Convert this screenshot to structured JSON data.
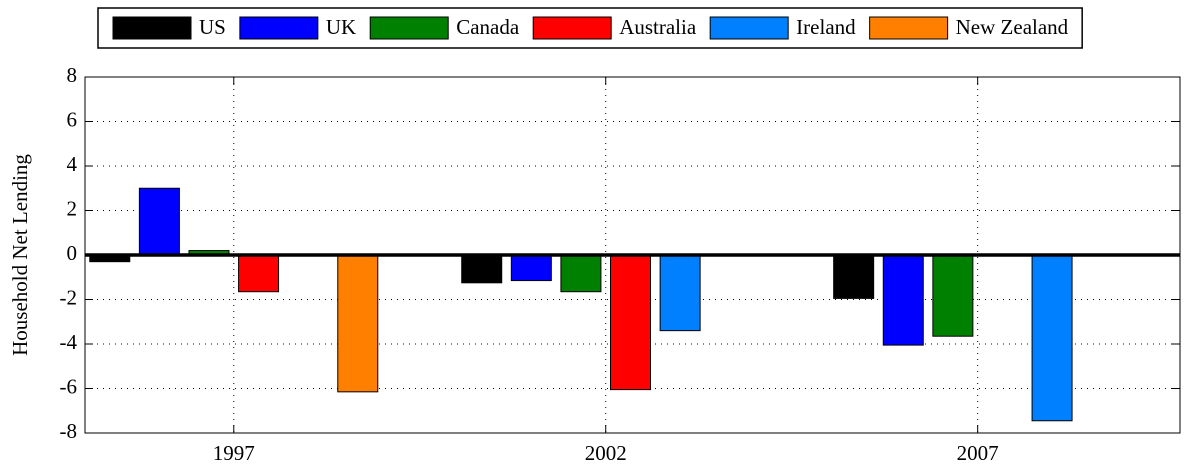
{
  "chart_data": {
    "type": "bar",
    "y_label": "Household Net Lending",
    "x": [
      1997,
      2002,
      2007
    ],
    "series": [
      {
        "name": "US",
        "color": "#000000",
        "values": [
          -0.3,
          -1.25,
          -1.95
        ]
      },
      {
        "name": "UK",
        "color": "#0000ff",
        "values": [
          3.0,
          -1.15,
          -4.05
        ]
      },
      {
        "name": "Canada",
        "color": "#008000",
        "values": [
          0.2,
          -1.65,
          -3.65
        ]
      },
      {
        "name": "Australia",
        "color": "#ff0000",
        "values": [
          -1.65,
          -6.05,
          null
        ]
      },
      {
        "name": "Ireland",
        "color": "#0080ff",
        "values": [
          null,
          -3.4,
          -7.45
        ]
      },
      {
        "name": "New Zealand",
        "color": "#ff8000",
        "values": [
          -6.15,
          null,
          null
        ]
      }
    ],
    "xlim": [
      1995,
      2009.72
    ],
    "xticks": [
      1997,
      2002,
      2007
    ],
    "ylim": [
      -8,
      8
    ],
    "yticks": [
      -8,
      -6,
      -4,
      -2,
      0,
      2,
      4,
      6,
      8
    ],
    "grid": true,
    "legend": "top"
  }
}
